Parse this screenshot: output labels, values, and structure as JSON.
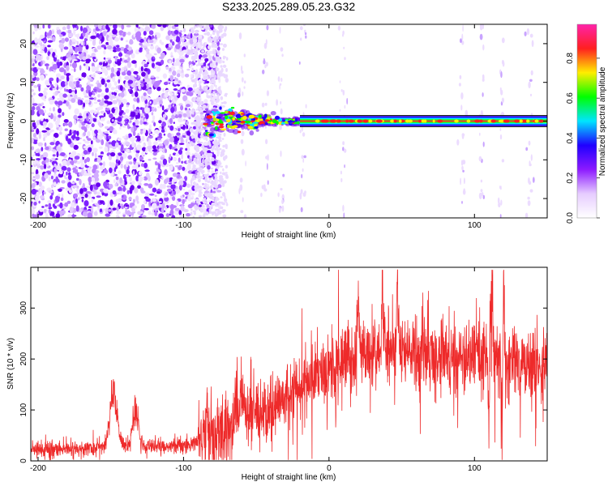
{
  "figure_title": "S233.2025.289.05.23.G32",
  "chart_data": [
    {
      "type": "heatmap",
      "name": "spectrogram",
      "xlabel": "Height of straight line (km)",
      "ylabel": "Frequency (Hz)",
      "xlim": [
        -205,
        150
      ],
      "ylim": [
        -25,
        25
      ],
      "xticks": [
        -200,
        -100,
        0,
        100
      ],
      "yticks": [
        -20,
        -10,
        0,
        10,
        20
      ],
      "signal": {
        "noise_region_x": [
          -205,
          -75
        ],
        "turbulent_region_x": [
          -85,
          -20
        ],
        "stable_region_x": [
          -20,
          150
        ],
        "line_frequency": 0,
        "sparse_streaks_x": [
          -60,
          -44,
          -33,
          -18,
          10,
          92,
          105,
          118,
          138
        ]
      },
      "colorbar": {
        "label": "Normalized spectral amplitude",
        "range": [
          0.0,
          0.97
        ],
        "ticks": [
          0.0,
          0.2,
          0.4,
          0.6,
          0.8
        ],
        "tick_labels": [
          "0.0",
          "0.2",
          "0.4",
          "0.6",
          "0.8"
        ],
        "colors": [
          "#ffffff",
          "#e6ccff",
          "#8c1aff",
          "#1f00ff",
          "#00e5ff",
          "#00ff00",
          "#ffee00",
          "#ff2020",
          "#ff22aa"
        ]
      }
    },
    {
      "type": "line",
      "name": "snr",
      "xlabel": "Height of straight line (km)",
      "ylabel": "SNR (10 * v/v)",
      "xlim": [
        -205,
        150
      ],
      "ylim": [
        0,
        380
      ],
      "xticks": [
        -200,
        -100,
        0,
        100
      ],
      "yticks": [
        0,
        100,
        200,
        300
      ],
      "line_color": "#ee2a2a",
      "baseline": [
        [
          -205,
          22
        ],
        [
          -160,
          25
        ],
        [
          -130,
          28
        ],
        [
          -100,
          30
        ],
        [
          -85,
          40
        ],
        [
          -70,
          60
        ],
        [
          -50,
          85
        ],
        [
          -30,
          120
        ],
        [
          -10,
          165
        ],
        [
          5,
          190
        ],
        [
          20,
          205
        ],
        [
          40,
          210
        ],
        [
          60,
          205
        ],
        [
          80,
          200
        ],
        [
          100,
          200
        ],
        [
          120,
          195
        ],
        [
          150,
          190
        ]
      ],
      "peaks": [
        {
          "x": -148,
          "height": 120,
          "width": 2.5
        },
        {
          "x": -133,
          "height": 85,
          "width": 2.0
        },
        {
          "x": -84,
          "height": 25,
          "width": 1.5
        },
        {
          "x": -61,
          "height": 60,
          "width": 3.0
        },
        {
          "x": 20,
          "height": 110,
          "width": 0.8
        },
        {
          "x": 37,
          "height": 100,
          "width": 0.8
        },
        {
          "x": 47,
          "height": 115,
          "width": 0.8
        },
        {
          "x": 112,
          "height": 140,
          "width": 0.6
        },
        {
          "x": 120,
          "height": 170,
          "width": 0.6
        },
        {
          "x": 119,
          "height": -170,
          "width": 0.4
        },
        {
          "x": 110,
          "height": -110,
          "width": 0.4
        }
      ]
    }
  ]
}
